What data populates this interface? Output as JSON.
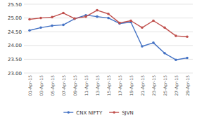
{
  "chart_data": {
    "type": "line",
    "categories": [
      "01-Apr-15",
      "03-Apr-15",
      "05-Apr-15",
      "07-Apr-15",
      "09-Apr-15",
      "11-Apr-15",
      "13-Apr-15",
      "15-Apr-15",
      "17-Apr-15",
      "19-Apr-15",
      "21-Apr-15",
      "23-Apr-15",
      "25-Apr-15",
      "27-Apr-15",
      "29-Apr-15"
    ],
    "series": [
      {
        "name": "CNX NIFTY",
        "color": "#4472c4",
        "marker": "circle",
        "line_style": "solid",
        "values": [
          24.55,
          24.65,
          24.72,
          24.75,
          24.97,
          25.1,
          25.05,
          25.0,
          24.8,
          24.85,
          23.97,
          24.1,
          23.72,
          23.48,
          23.55
        ]
      },
      {
        "name": "SJVN",
        "color": "#c0504d",
        "marker": "circle",
        "line_style": "solid",
        "values": [
          24.95,
          25.0,
          25.03,
          25.18,
          24.98,
          25.05,
          25.28,
          25.15,
          24.82,
          24.9,
          24.65,
          24.9,
          24.65,
          24.35,
          24.32
        ]
      }
    ],
    "ylim": [
      23.0,
      25.5
    ],
    "yticks": [
      {
        "value": 23.0,
        "label": "23.00"
      },
      {
        "value": 23.5,
        "label": "23.50"
      },
      {
        "value": 24.0,
        "label": "24.00"
      },
      {
        "value": 24.5,
        "label": "24.50"
      },
      {
        "value": 25.0,
        "label": "25.00"
      },
      {
        "value": 25.5,
        "label": "25.50"
      }
    ],
    "grid": true,
    "legend": "bottom"
  }
}
